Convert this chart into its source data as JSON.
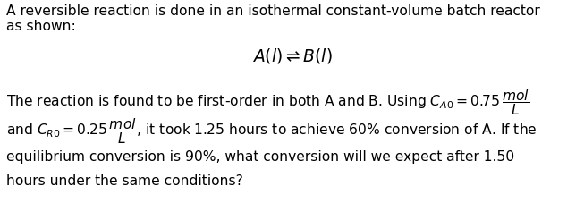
{
  "bg_color": "#ffffff",
  "text_color": "#000000",
  "font_size_body": 11.2,
  "font_size_reaction": 13.5,
  "fig_width": 6.53,
  "fig_height": 2.46,
  "dpi": 100,
  "header_line1": "A reversible reaction is done in an isothermal constant-volume batch reactor",
  "header_line2": "as shown:",
  "reaction": "$A(l) \\rightleftharpoons B(l)$",
  "para_line1": "The reaction is found to be first-order in both A and B. Using $C_{A0} = 0.75\\,\\dfrac{mol}{L}$",
  "para_line2": "and $C_{R0} = 0.25\\,\\dfrac{mol}{L}$, it took 1.25 hours to achieve 60% conversion of A. If the",
  "para_line3": "equilibrium conversion is 90%, what conversion will we expect after 1.50",
  "para_line4": "hours under the same conditions?"
}
